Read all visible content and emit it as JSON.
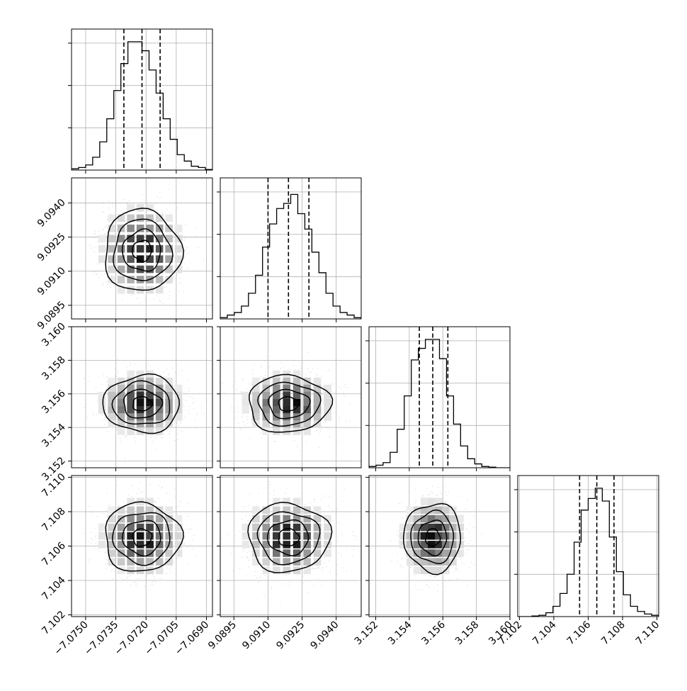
{
  "chart_data": {
    "type": "corner",
    "description_style": "corner plot of 4 parameters with 1D histograms on the diagonal and 2D density contours below",
    "grid": true,
    "quantiles": [
      0.16,
      0.5,
      0.84
    ],
    "params": [
      {
        "median": -7.0722,
        "q16": -7.0731,
        "q84": -7.0713,
        "sigma": 0.00095,
        "range": [
          -7.0757,
          -7.0687
        ],
        "ticks": [
          -7.075,
          -7.0735,
          -7.072,
          -7.0705,
          -7.069
        ],
        "tick_labels": [
          "−7.0750",
          "−7.0735",
          "−7.0720",
          "−7.0705",
          "−7.0690"
        ],
        "hist": [
          0.01,
          0.02,
          0.04,
          0.1,
          0.22,
          0.4,
          0.62,
          0.83,
          1.0,
          1.0,
          0.93,
          0.78,
          0.6,
          0.4,
          0.24,
          0.12,
          0.07,
          0.03,
          0.02,
          0.005
        ]
      },
      {
        "median": 9.0919,
        "q16": 9.091,
        "q84": 9.0928,
        "sigma": 0.0009,
        "range": [
          9.0889,
          9.0951
        ],
        "ticks": [
          9.0895,
          9.091,
          9.0925,
          9.094
        ],
        "tick_labels": [
          "9.0895",
          "9.0910",
          "9.0925",
          "9.0940"
        ],
        "hist": [
          0.01,
          0.03,
          0.05,
          0.1,
          0.2,
          0.34,
          0.56,
          0.74,
          0.86,
          0.9,
          0.97,
          0.82,
          0.7,
          0.52,
          0.36,
          0.2,
          0.1,
          0.05,
          0.03,
          0.01
        ]
      },
      {
        "median": 3.1554,
        "q16": 3.1546,
        "q84": 3.1563,
        "sigma": 0.00085,
        "range": [
          3.1516,
          3.16
        ],
        "ticks": [
          3.152,
          3.154,
          3.156,
          3.158,
          3.16
        ],
        "tick_labels": [
          "3.152",
          "3.154",
          "3.156",
          "3.158",
          "3.160"
        ],
        "hist": [
          0.01,
          0.02,
          0.04,
          0.12,
          0.3,
          0.56,
          0.84,
          0.93,
          1.0,
          1.0,
          0.85,
          0.56,
          0.34,
          0.17,
          0.07,
          0.03,
          0.01,
          0.005,
          0.0,
          0.0
        ]
      },
      {
        "median": 7.1065,
        "q16": 7.1055,
        "q84": 7.1075,
        "sigma": 0.001,
        "range": [
          7.1019,
          7.1101
        ],
        "ticks": [
          7.102,
          7.104,
          7.106,
          7.108,
          7.11
        ],
        "tick_labels": [
          "7.102",
          "7.104",
          "7.106",
          "7.108",
          "7.110"
        ],
        "hist": [
          0.0,
          0.0,
          0.005,
          0.01,
          0.03,
          0.08,
          0.18,
          0.33,
          0.58,
          0.83,
          0.92,
          1.0,
          0.9,
          0.62,
          0.35,
          0.17,
          0.08,
          0.04,
          0.02,
          0.01
        ]
      }
    ]
  }
}
